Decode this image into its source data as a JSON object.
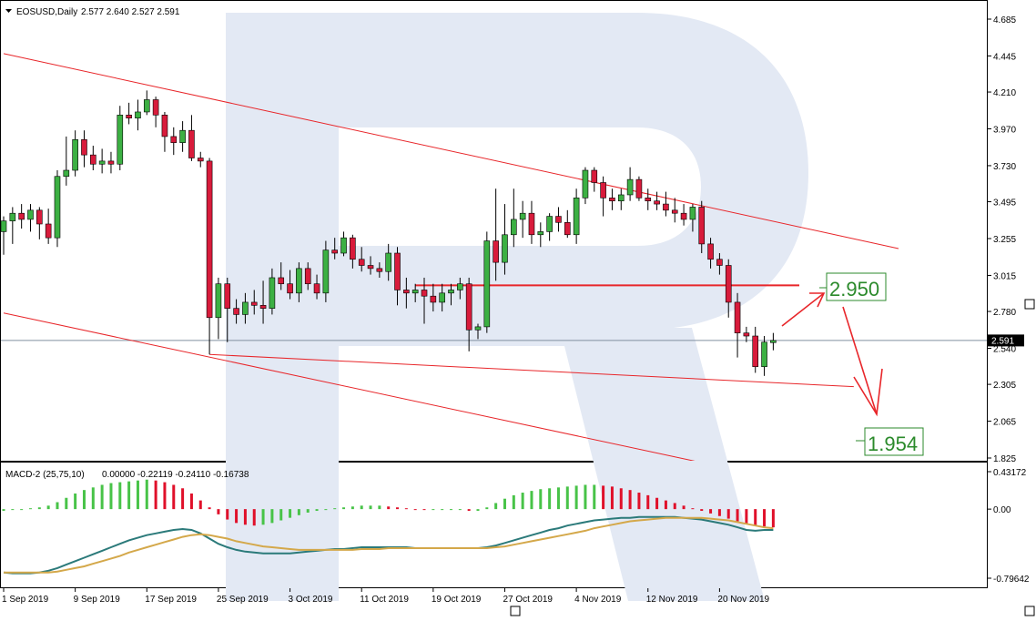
{
  "header": {
    "main_title": "EOSUSD,Daily",
    "main_ohlc": "2.577 2.640 2.527 2.591",
    "macd_title": "MACD-2 (25,75,10)",
    "macd_values": "0.00000 -0.22119 -0.24110 -0.16738"
  },
  "colors": {
    "bull": "#3cb043",
    "bear": "#d81b3b",
    "hist_up": "#48c348",
    "hist_down": "#e0102a",
    "macd_line": "#2b7a7a",
    "signal_line": "#d4a84a",
    "channel": "#e8262a",
    "target": "#2b8a2b",
    "watermark": "#e3e9f4"
  },
  "chart_data": {
    "type": "candlestick",
    "symbol": "EOSUSD",
    "timeframe": "Daily",
    "current_price": "2.591",
    "y_ticks": [
      "4.685",
      "4.445",
      "4.210",
      "3.970",
      "3.730",
      "3.495",
      "3.255",
      "3.015",
      "2.780",
      "2.540",
      "2.305",
      "2.065",
      "1.825"
    ],
    "ylim": [
      1.8,
      4.8
    ],
    "x_labels": [
      {
        "label": "1 Sep 2019",
        "index": 0
      },
      {
        "label": "9 Sep 2019",
        "index": 8
      },
      {
        "label": "17 Sep 2019",
        "index": 16
      },
      {
        "label": "25 Sep 2019",
        "index": 24
      },
      {
        "label": "3 Oct 2019",
        "index": 32
      },
      {
        "label": "11 Oct 2019",
        "index": 40
      },
      {
        "label": "19 Oct 2019",
        "index": 48
      },
      {
        "label": "27 Oct 2019",
        "index": 56
      },
      {
        "label": "4 Nov 2019",
        "index": 64
      },
      {
        "label": "12 Nov 2019",
        "index": 72
      },
      {
        "label": "20 Nov 2019",
        "index": 80
      }
    ],
    "ohlc": [
      [
        3.3,
        3.4,
        3.15,
        3.37
      ],
      [
        3.37,
        3.46,
        3.22,
        3.42
      ],
      [
        3.42,
        3.48,
        3.32,
        3.38
      ],
      [
        3.38,
        3.48,
        3.3,
        3.44
      ],
      [
        3.44,
        3.46,
        3.25,
        3.35
      ],
      [
        3.35,
        3.45,
        3.22,
        3.26
      ],
      [
        3.26,
        3.7,
        3.2,
        3.66
      ],
      [
        3.66,
        3.92,
        3.6,
        3.7
      ],
      [
        3.7,
        3.96,
        3.66,
        3.9
      ],
      [
        3.9,
        3.96,
        3.72,
        3.8
      ],
      [
        3.8,
        3.86,
        3.7,
        3.74
      ],
      [
        3.74,
        3.84,
        3.68,
        3.76
      ],
      [
        3.76,
        3.82,
        3.68,
        3.74
      ],
      [
        3.74,
        4.12,
        3.7,
        4.06
      ],
      [
        4.06,
        4.14,
        4.0,
        4.04
      ],
      [
        4.04,
        4.16,
        3.96,
        4.08
      ],
      [
        4.08,
        4.22,
        4.06,
        4.16
      ],
      [
        4.16,
        4.18,
        3.98,
        4.06
      ],
      [
        4.06,
        4.08,
        3.82,
        3.92
      ],
      [
        3.92,
        3.98,
        3.8,
        3.88
      ],
      [
        3.88,
        4.02,
        3.82,
        3.96
      ],
      [
        3.96,
        4.06,
        3.76,
        3.78
      ],
      [
        3.78,
        3.82,
        3.72,
        3.76
      ],
      [
        3.76,
        3.78,
        2.5,
        2.74
      ],
      [
        2.74,
        3.0,
        2.6,
        2.96
      ],
      [
        2.96,
        3.0,
        2.58,
        2.8
      ],
      [
        2.8,
        2.86,
        2.7,
        2.76
      ],
      [
        2.76,
        2.9,
        2.7,
        2.84
      ],
      [
        2.84,
        2.92,
        2.76,
        2.82
      ],
      [
        2.82,
        2.98,
        2.7,
        2.8
      ],
      [
        2.8,
        3.06,
        2.76,
        3.0
      ],
      [
        3.0,
        3.1,
        2.92,
        2.96
      ],
      [
        2.96,
        3.05,
        2.86,
        2.9
      ],
      [
        2.9,
        3.1,
        2.84,
        3.06
      ],
      [
        3.06,
        3.1,
        2.92,
        2.96
      ],
      [
        2.96,
        3.02,
        2.86,
        2.9
      ],
      [
        2.9,
        3.24,
        2.84,
        3.18
      ],
      [
        3.18,
        3.26,
        3.12,
        3.16
      ],
      [
        3.16,
        3.3,
        3.14,
        3.26
      ],
      [
        3.26,
        3.28,
        3.06,
        3.12
      ],
      [
        3.12,
        3.2,
        3.04,
        3.08
      ],
      [
        3.08,
        3.14,
        3.02,
        3.06
      ],
      [
        3.06,
        3.1,
        3.0,
        3.04
      ],
      [
        3.04,
        3.22,
        2.98,
        3.16
      ],
      [
        3.16,
        3.2,
        2.82,
        2.92
      ],
      [
        2.92,
        3.0,
        2.8,
        2.9
      ],
      [
        2.9,
        2.96,
        2.84,
        2.92
      ],
      [
        2.92,
        3.0,
        2.7,
        2.88
      ],
      [
        2.88,
        2.96,
        2.78,
        2.84
      ],
      [
        2.84,
        2.96,
        2.78,
        2.9
      ],
      [
        2.9,
        2.96,
        2.82,
        2.92
      ],
      [
        2.92,
        3.0,
        2.86,
        2.96
      ],
      [
        2.96,
        3.0,
        2.52,
        2.66
      ],
      [
        2.66,
        2.7,
        2.6,
        2.68
      ],
      [
        2.68,
        3.3,
        2.64,
        3.24
      ],
      [
        3.24,
        3.58,
        2.98,
        3.1
      ],
      [
        3.1,
        3.48,
        3.02,
        3.28
      ],
      [
        3.28,
        3.58,
        3.2,
        3.38
      ],
      [
        3.38,
        3.5,
        3.26,
        3.42
      ],
      [
        3.42,
        3.5,
        3.22,
        3.28
      ],
      [
        3.28,
        3.36,
        3.2,
        3.3
      ],
      [
        3.3,
        3.42,
        3.24,
        3.4
      ],
      [
        3.4,
        3.46,
        3.3,
        3.36
      ],
      [
        3.36,
        3.44,
        3.26,
        3.28
      ],
      [
        3.28,
        3.58,
        3.22,
        3.52
      ],
      [
        3.52,
        3.72,
        3.48,
        3.7
      ],
      [
        3.7,
        3.72,
        3.56,
        3.62
      ],
      [
        3.62,
        3.66,
        3.4,
        3.52
      ],
      [
        3.52,
        3.58,
        3.44,
        3.5
      ],
      [
        3.5,
        3.58,
        3.44,
        3.54
      ],
      [
        3.54,
        3.72,
        3.5,
        3.64
      ],
      [
        3.64,
        3.66,
        3.5,
        3.52
      ],
      [
        3.52,
        3.58,
        3.44,
        3.5
      ],
      [
        3.5,
        3.56,
        3.44,
        3.48
      ],
      [
        3.48,
        3.56,
        3.4,
        3.44
      ],
      [
        3.44,
        3.52,
        3.36,
        3.42
      ],
      [
        3.42,
        3.48,
        3.34,
        3.38
      ],
      [
        3.38,
        3.48,
        3.3,
        3.46
      ],
      [
        3.46,
        3.5,
        3.16,
        3.22
      ],
      [
        3.22,
        3.26,
        3.06,
        3.12
      ],
      [
        3.12,
        3.16,
        3.02,
        3.08
      ],
      [
        3.08,
        3.12,
        2.74,
        2.84
      ],
      [
        2.84,
        2.9,
        2.48,
        2.64
      ],
      [
        2.64,
        2.68,
        2.58,
        2.62
      ],
      [
        2.62,
        2.68,
        2.38,
        2.42
      ],
      [
        2.42,
        2.62,
        2.36,
        2.58
      ],
      [
        2.577,
        2.64,
        2.527,
        2.591
      ]
    ],
    "macd": {
      "y_ticks": [
        "0.43172",
        "0.00",
        "-0.79642"
      ],
      "ylim": [
        -0.86,
        0.5
      ],
      "histogram": [
        -0.02,
        -0.01,
        0.0,
        0.01,
        0.02,
        0.04,
        0.08,
        0.13,
        0.18,
        0.22,
        0.25,
        0.28,
        0.3,
        0.31,
        0.32,
        0.33,
        0.34,
        0.33,
        0.31,
        0.28,
        0.24,
        0.18,
        0.1,
        0.02,
        -0.06,
        -0.12,
        -0.16,
        -0.18,
        -0.19,
        -0.18,
        -0.16,
        -0.13,
        -0.1,
        -0.07,
        -0.04,
        -0.02,
        0.0,
        0.01,
        0.02,
        0.03,
        0.04,
        0.04,
        0.04,
        0.03,
        0.02,
        0.01,
        0.0,
        -0.01,
        -0.01,
        -0.01,
        -0.01,
        -0.01,
        -0.02,
        -0.02,
        0.02,
        0.07,
        0.12,
        0.16,
        0.19,
        0.21,
        0.23,
        0.24,
        0.25,
        0.26,
        0.27,
        0.28,
        0.28,
        0.27,
        0.26,
        0.24,
        0.22,
        0.19,
        0.16,
        0.13,
        0.1,
        0.07,
        0.04,
        0.01,
        -0.02,
        -0.05,
        -0.08,
        -0.11,
        -0.14,
        -0.17,
        -0.19,
        -0.2,
        -0.21
      ],
      "macd_line": [
        -0.73,
        -0.74,
        -0.74,
        -0.74,
        -0.73,
        -0.71,
        -0.68,
        -0.64,
        -0.6,
        -0.56,
        -0.52,
        -0.48,
        -0.44,
        -0.4,
        -0.36,
        -0.33,
        -0.3,
        -0.28,
        -0.26,
        -0.24,
        -0.23,
        -0.24,
        -0.28,
        -0.34,
        -0.4,
        -0.44,
        -0.47,
        -0.49,
        -0.5,
        -0.51,
        -0.51,
        -0.51,
        -0.51,
        -0.5,
        -0.49,
        -0.48,
        -0.47,
        -0.46,
        -0.46,
        -0.45,
        -0.44,
        -0.44,
        -0.44,
        -0.44,
        -0.44,
        -0.44,
        -0.45,
        -0.45,
        -0.45,
        -0.45,
        -0.45,
        -0.45,
        -0.45,
        -0.45,
        -0.44,
        -0.42,
        -0.39,
        -0.36,
        -0.33,
        -0.3,
        -0.27,
        -0.24,
        -0.22,
        -0.19,
        -0.17,
        -0.15,
        -0.13,
        -0.12,
        -0.11,
        -0.1,
        -0.1,
        -0.09,
        -0.09,
        -0.09,
        -0.09,
        -0.09,
        -0.1,
        -0.11,
        -0.12,
        -0.14,
        -0.16,
        -0.18,
        -0.21,
        -0.24,
        -0.25,
        -0.24,
        -0.24
      ],
      "signal_line": [
        -0.73,
        -0.73,
        -0.73,
        -0.73,
        -0.73,
        -0.73,
        -0.72,
        -0.7,
        -0.68,
        -0.66,
        -0.63,
        -0.6,
        -0.57,
        -0.54,
        -0.5,
        -0.47,
        -0.44,
        -0.41,
        -0.38,
        -0.35,
        -0.32,
        -0.3,
        -0.29,
        -0.3,
        -0.32,
        -0.34,
        -0.37,
        -0.39,
        -0.41,
        -0.43,
        -0.44,
        -0.45,
        -0.46,
        -0.47,
        -0.47,
        -0.47,
        -0.47,
        -0.47,
        -0.47,
        -0.47,
        -0.46,
        -0.46,
        -0.46,
        -0.45,
        -0.45,
        -0.45,
        -0.45,
        -0.45,
        -0.45,
        -0.45,
        -0.45,
        -0.45,
        -0.45,
        -0.45,
        -0.45,
        -0.44,
        -0.43,
        -0.41,
        -0.39,
        -0.37,
        -0.35,
        -0.33,
        -0.31,
        -0.29,
        -0.27,
        -0.25,
        -0.22,
        -0.2,
        -0.18,
        -0.16,
        -0.14,
        -0.13,
        -0.12,
        -0.11,
        -0.1,
        -0.1,
        -0.1,
        -0.1,
        -0.1,
        -0.11,
        -0.12,
        -0.13,
        -0.15,
        -0.17,
        -0.19,
        -0.21,
        -0.22
      ]
    },
    "annotations": {
      "resistance_level": 2.95,
      "target_up": "2.950",
      "target_down": "1.954",
      "channel_upper": [
        [
          0,
          4.46
        ],
        [
          100,
          3.19
        ]
      ],
      "channel_lower": [
        [
          23,
          2.5
        ],
        [
          95,
          2.29
        ]
      ],
      "channel_base": [
        [
          0,
          2.77
        ],
        [
          80,
          1.77
        ]
      ]
    }
  }
}
